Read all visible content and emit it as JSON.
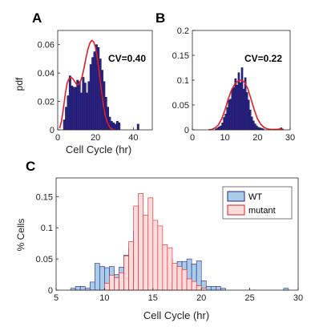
{
  "chart_data": [
    {
      "panel_label": "A",
      "type": "bar",
      "annotation": "CV=0.40",
      "xlabel": "Cell Cycle (hr)",
      "ylabel": "pdf",
      "xlim": [
        0,
        50
      ],
      "ylim": [
        0,
        0.07
      ],
      "xticks": [
        0,
        20,
        40
      ],
      "yticks": [
        0,
        0.02,
        0.04,
        0.06
      ],
      "ytick_labels": [
        "0",
        "0.02",
        "0.04",
        "0.06"
      ],
      "bar_color": "#2b2585",
      "curve_color": "#e01e24",
      "bins": {
        "x0": 3,
        "width": 1,
        "values": [
          0.007,
          0.016,
          0.024,
          0.038,
          0.031,
          0.03,
          0.03,
          0.035,
          0.034,
          0.026,
          0.037,
          0.033,
          0.026,
          0.034,
          0.046,
          0.051,
          0.055,
          0.06,
          0.058,
          0.05,
          0.042,
          0.034,
          0.023,
          0.016,
          0.009,
          0.006,
          0.005,
          0.004,
          0.006,
          0.005,
          0,
          0,
          0,
          0,
          0,
          0,
          0,
          0,
          0,
          0.004
        ]
      },
      "curve": {
        "x": [
          1,
          2,
          3,
          4,
          5,
          6,
          7,
          8,
          9,
          10,
          11,
          12,
          13,
          14,
          15,
          16,
          17,
          18,
          19,
          20,
          21,
          22,
          23,
          24,
          25,
          26,
          27,
          28,
          29,
          30
        ],
        "y": [
          0.001,
          0.006,
          0.015,
          0.025,
          0.033,
          0.036,
          0.037,
          0.036,
          0.034,
          0.032,
          0.032,
          0.034,
          0.038,
          0.044,
          0.051,
          0.057,
          0.061,
          0.063,
          0.062,
          0.058,
          0.05,
          0.04,
          0.029,
          0.019,
          0.011,
          0.006,
          0.003,
          0.001,
          0.0005,
          0
        ]
      }
    },
    {
      "panel_label": "B",
      "type": "bar",
      "annotation": "CV=0.22",
      "xlabel": "",
      "ylabel": "",
      "xlim": [
        0,
        30
      ],
      "ylim": [
        0,
        0.2
      ],
      "xticks": [
        0,
        10,
        20,
        30
      ],
      "yticks": [
        0,
        0.05,
        0.1,
        0.15,
        0.2
      ],
      "ytick_labels": [
        "0",
        "0.05",
        "0.1",
        "0.15",
        "0.2"
      ],
      "bar_color": "#2b2585",
      "curve_color": "#e01e24",
      "bins": {
        "x0": 7,
        "width": 0.5,
        "values": [
          0.002,
          0.004,
          0.006,
          0.008,
          0.014,
          0.025,
          0.032,
          0.045,
          0.06,
          0.062,
          0.082,
          0.085,
          0.103,
          0.09,
          0.115,
          0.095,
          0.125,
          0.082,
          0.105,
          0.075,
          0.06,
          0.04,
          0.026,
          0.018,
          0.012,
          0.008,
          0.005,
          0.004,
          0.003,
          0.002,
          0,
          0,
          0,
          0,
          0,
          0,
          0,
          0,
          0,
          0,
          0.004
        ]
      },
      "curve": {
        "x": [
          5,
          6,
          7,
          8,
          9,
          10,
          11,
          12,
          13,
          14,
          15,
          16,
          17,
          18,
          19,
          20,
          21,
          22,
          23,
          24,
          25,
          26,
          27,
          28
        ],
        "y": [
          0,
          0.001,
          0.004,
          0.01,
          0.022,
          0.04,
          0.062,
          0.08,
          0.092,
          0.098,
          0.1,
          0.096,
          0.083,
          0.062,
          0.04,
          0.022,
          0.011,
          0.005,
          0.002,
          0.001,
          0.001,
          0.001,
          0.002,
          0.001
        ]
      }
    },
    {
      "panel_label": "C",
      "type": "bar",
      "xlabel": "Cell Cycle (hr)",
      "ylabel": "% Cells",
      "xlim": [
        5,
        30
      ],
      "ylim": [
        0,
        0.18
      ],
      "xticks": [
        5,
        10,
        15,
        20,
        25,
        30
      ],
      "yticks": [
        0,
        0.05,
        0.1,
        0.15
      ],
      "ytick_labels": [
        "0",
        "0.05",
        "0.1",
        "0.15"
      ],
      "legend_position": "top-right",
      "series": [
        {
          "name": "WT",
          "fill": "#a9cde9",
          "stroke": "#2b2585",
          "bins": {
            "x0": 6.5,
            "width": 0.5,
            "values": [
              0.003,
              0.006,
              0.006,
              0.003,
              0.013,
              0.043,
              0.038,
              0.036,
              0.038,
              0.025,
              0.037,
              0.056,
              0.068,
              0.095,
              0.12,
              0.108,
              0.102,
              0.075,
              0.062,
              0.058,
              0.05,
              0.042,
              0.046,
              0.046,
              0.05,
              0.042,
              0.047,
              0.015,
              0.006,
              0.006,
              0.006,
              0.003,
              0,
              0,
              0,
              0,
              0,
              0,
              0,
              0,
              0,
              0,
              0,
              0,
              0.003
            ]
          }
        },
        {
          "name": "mutant",
          "fill": "#fbdcdc",
          "stroke": "#e01e24",
          "bins": {
            "x0": 6.5,
            "width": 0.5,
            "values": [
              0,
              0,
              0,
              0,
              0,
              0,
              0,
              0.011,
              0.024,
              0.02,
              0.028,
              0.055,
              0.078,
              0.135,
              0.155,
              0.12,
              0.148,
              0.112,
              0.103,
              0.073,
              0.068,
              0.043,
              0.038,
              0.033,
              0.018,
              0.014,
              0.007,
              0.003,
              0,
              0,
              0,
              0,
              0,
              0,
              0,
              0,
              0,
              0,
              0,
              0,
              0,
              0,
              0,
              0,
              0
            ]
          }
        }
      ]
    }
  ]
}
